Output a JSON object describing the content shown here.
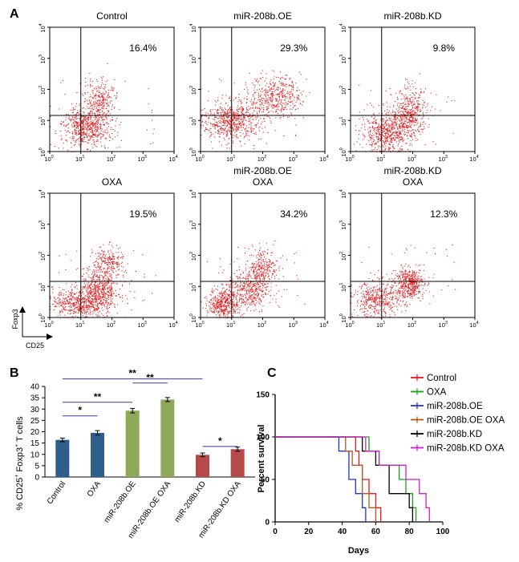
{
  "panel_labels": {
    "a": "A",
    "b": "B",
    "c": "C"
  },
  "flow": {
    "y_axis_label": "Foxp3",
    "x_axis_label": "CD25",
    "tick_labels": [
      "10",
      "10",
      "10",
      "10",
      "10"
    ],
    "tick_exponents": [
      "0",
      "1",
      "2",
      "3",
      "4"
    ],
    "plots": [
      {
        "title": [
          "Control"
        ],
        "percent": "16.4%",
        "color": "#e31a1c"
      },
      {
        "title": [
          "miR-208b.OE"
        ],
        "percent": "29.3%",
        "color": "#e31a1c"
      },
      {
        "title": [
          "miR-208b.KD"
        ],
        "percent": "9.8%",
        "color": "#e31a1c"
      },
      {
        "title": [
          "OXA"
        ],
        "percent": "19.5%",
        "color": "#e31a1c"
      },
      {
        "title": [
          "miR-208b.OE",
          "OXA"
        ],
        "percent": "34.2%",
        "color": "#e31a1c"
      },
      {
        "title": [
          "miR-208b.KD",
          "OXA"
        ],
        "percent": "12.3%",
        "color": "#e31a1c"
      }
    ]
  },
  "chart_data": [
    {
      "type": "bar",
      "ylabel": "% CD25+ Foxp3+ T cells",
      "ylabel_parts": [
        "% CD25",
        "+",
        " Foxp3",
        "+",
        " T cells"
      ],
      "ylim": [
        0,
        40
      ],
      "yticks": [
        0,
        5,
        10,
        15,
        20,
        25,
        30,
        35,
        40
      ],
      "categories": [
        "Control",
        "OXA",
        "miR-208b.OE",
        "miR-208b.OE OXA",
        "miR-208b.KD",
        "miR-208b.KD OXA"
      ],
      "values": [
        16.4,
        19.5,
        29.3,
        34.2,
        9.8,
        12.3
      ],
      "errors": [
        0.8,
        1.0,
        1.0,
        0.9,
        0.8,
        0.9
      ],
      "colors": [
        "#2e5e8c",
        "#2e5e8c",
        "#8fa95a",
        "#8fa95a",
        "#b44a4a",
        "#b44a4a"
      ],
      "significance": [
        {
          "from": 0,
          "to": 1,
          "label": "*"
        },
        {
          "from": 0,
          "to": 2,
          "label": "**"
        },
        {
          "from": 2,
          "to": 3,
          "label": "**"
        },
        {
          "from": 0,
          "to": 4,
          "label": "**"
        },
        {
          "from": 4,
          "to": 5,
          "label": "*"
        }
      ]
    },
    {
      "type": "line",
      "xlabel": "Days",
      "ylabel": "Percent survival",
      "xlim": [
        0,
        100
      ],
      "ylim": [
        0,
        150
      ],
      "xticks": [
        0,
        20,
        40,
        60,
        80,
        100
      ],
      "yticks": [
        0,
        50,
        100,
        150
      ],
      "legend_position": "top-right",
      "series": [
        {
          "name": "Control",
          "color": "#e31a1c",
          "x": [
            0,
            40,
            48,
            50,
            52,
            56,
            60,
            62,
            63
          ],
          "y": [
            100,
            100,
            83.3,
            66.7,
            50,
            33.3,
            16.7,
            16.7,
            0
          ]
        },
        {
          "name": "OXA",
          "color": "#1aa31a",
          "x": [
            0,
            50,
            56,
            62,
            74,
            78,
            82,
            84
          ],
          "y": [
            100,
            100,
            83.3,
            66.7,
            50,
            33.3,
            16.7,
            0
          ]
        },
        {
          "name": "miR-208b.OE",
          "color": "#2233cc",
          "x": [
            0,
            32,
            38,
            44,
            48,
            52,
            54
          ],
          "y": [
            100,
            100,
            83.3,
            50,
            33.3,
            16.7,
            0
          ]
        },
        {
          "name": "miR-208b.OE OXA",
          "color": "#b35a1f",
          "x": [
            0,
            38,
            42,
            46,
            52,
            56,
            60
          ],
          "y": [
            100,
            100,
            83.3,
            66.7,
            33.3,
            16.7,
            0
          ]
        },
        {
          "name": "miR-208b.KD",
          "color": "#000000",
          "x": [
            0,
            44,
            52,
            60,
            68,
            76,
            80,
            82
          ],
          "y": [
            100,
            100,
            83.3,
            66.7,
            33.3,
            33.3,
            16.7,
            0
          ]
        },
        {
          "name": "miR-208b.KD OXA",
          "color": "#cc22cc",
          "x": [
            0,
            46,
            54,
            62,
            70,
            78,
            86,
            90,
            92
          ],
          "y": [
            100,
            100,
            83.3,
            66.7,
            66.7,
            50,
            33.3,
            16.7,
            0
          ]
        }
      ]
    }
  ]
}
